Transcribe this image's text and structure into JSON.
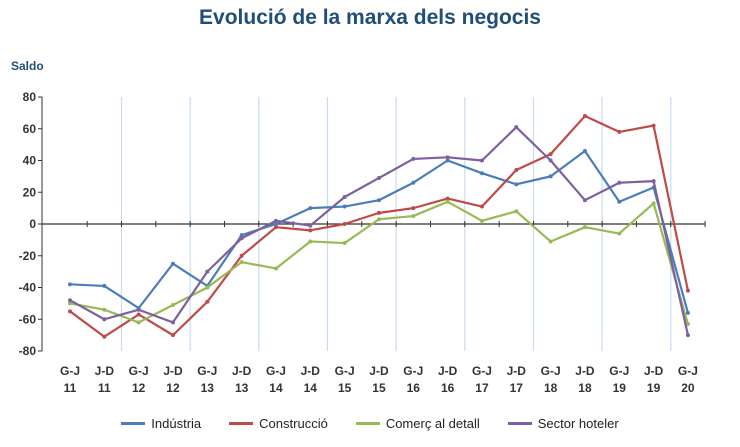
{
  "chart_data": {
    "type": "line",
    "title": "Evolució de la marxa dels negocis",
    "ylabel": "Saldo",
    "xlabel": "",
    "ylim": [
      -80,
      80
    ],
    "yticks": [
      80,
      60,
      40,
      20,
      0,
      -20,
      -40,
      -60,
      -80
    ],
    "categories": [
      [
        "G-J",
        "11"
      ],
      [
        "J-D",
        "11"
      ],
      [
        "G-J",
        "12"
      ],
      [
        "J-D",
        "12"
      ],
      [
        "G-J",
        "13"
      ],
      [
        "J-D",
        "13"
      ],
      [
        "G-J",
        "14"
      ],
      [
        "J-D",
        "14"
      ],
      [
        "G-J",
        "15"
      ],
      [
        "J-D",
        "15"
      ],
      [
        "G-J",
        "16"
      ],
      [
        "J-D",
        "16"
      ],
      [
        "G-J",
        "17"
      ],
      [
        "J-D",
        "17"
      ],
      [
        "G-J",
        "18"
      ],
      [
        "J-D",
        "18"
      ],
      [
        "G-J",
        "19"
      ],
      [
        "J-D",
        "19"
      ],
      [
        "G-J",
        "20"
      ]
    ],
    "grid": "vertical lines between years",
    "legend": "bottom",
    "series": [
      {
        "name": "Indústria",
        "color": "#4a7ebb",
        "values": [
          -38,
          -39,
          -53,
          -25,
          -39,
          -7,
          0,
          10,
          11,
          15,
          26,
          40,
          32,
          25,
          30,
          46,
          14,
          23,
          -56
        ]
      },
      {
        "name": "Construcció",
        "color": "#be4b48",
        "values": [
          -55,
          -71,
          -57,
          -70,
          -49,
          -20,
          -2,
          -4,
          0,
          7,
          10,
          16,
          11,
          34,
          44,
          68,
          58,
          62,
          -42
        ]
      },
      {
        "name": "Comerç al detall",
        "color": "#98b954",
        "values": [
          -50,
          -54,
          -62,
          -51,
          -40,
          -24,
          -28,
          -11,
          -12,
          3,
          5,
          14,
          2,
          8,
          -11,
          -2,
          -6,
          13,
          -63
        ]
      },
      {
        "name": "Sector hoteler",
        "color": "#7d60a0",
        "values": [
          -48,
          -60,
          -54,
          -62,
          -30,
          -9,
          2,
          -1,
          17,
          29,
          41,
          42,
          40,
          61,
          40,
          15,
          26,
          27,
          -70
        ]
      }
    ]
  }
}
